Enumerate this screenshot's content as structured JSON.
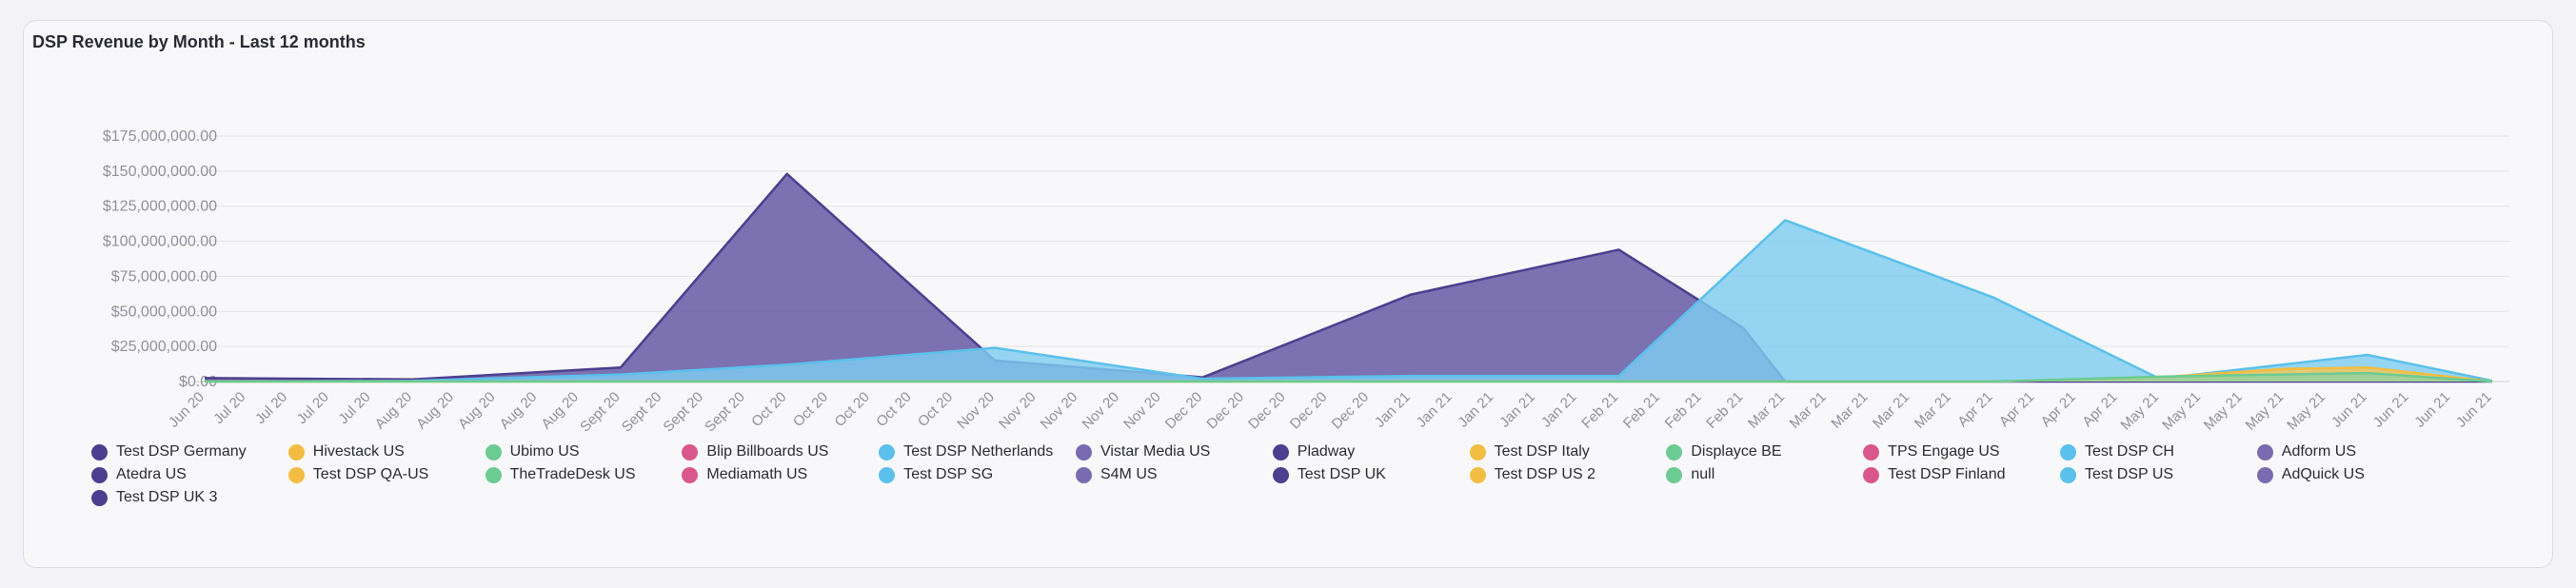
{
  "chart_data": {
    "type": "area",
    "title": "DSP Revenue by Month - Last 12 months",
    "xlabel": "",
    "ylabel": "",
    "ylim": [
      0,
      175000000
    ],
    "yticks": [
      0,
      25000000,
      50000000,
      75000000,
      100000000,
      125000000,
      150000000,
      175000000
    ],
    "ytick_labels": [
      "$0.00",
      "$25,000,000.00",
      "$50,000,000.00",
      "$75,000,000.00",
      "$100,000,000.00",
      "$125,000,000.00",
      "$150,000,000.00",
      "$175,000,000.00"
    ],
    "grid": true,
    "legend_placement": "bottom",
    "categories": [
      "Jun 20",
      "Jul 20",
      "Jul 20",
      "Jul 20",
      "Jul 20",
      "Aug 20",
      "Aug 20",
      "Aug 20",
      "Aug 20",
      "Aug 20",
      "Sept 20",
      "Sept 20",
      "Sept 20",
      "Sept 20",
      "Oct 20",
      "Oct 20",
      "Oct 20",
      "Oct 20",
      "Oct 20",
      "Nov 20",
      "Nov 20",
      "Nov 20",
      "Nov 20",
      "Nov 20",
      "Dec 20",
      "Dec 20",
      "Dec 20",
      "Dec 20",
      "Dec 20",
      "Jan 21",
      "Jan 21",
      "Jan 21",
      "Jan 21",
      "Jan 21",
      "Feb 21",
      "Feb 21",
      "Feb 21",
      "Feb 21",
      "Mar 21",
      "Mar 21",
      "Mar 21",
      "Mar 21",
      "Mar 21",
      "Apr 21",
      "Apr 21",
      "Apr 21",
      "Apr 21",
      "May 21",
      "May 21",
      "May 21",
      "May 21",
      "May 21",
      "Jun 21",
      "Jun 21",
      "Jun 21",
      "Jun 21"
    ],
    "series": [
      {
        "name": "Pladway",
        "color": "#4b3f8f",
        "fill": "#6a5ea6",
        "opacity": 0.88,
        "x": [
          0,
          5,
          10,
          14,
          19,
          24,
          29,
          34,
          37,
          38,
          55
        ],
        "values": [
          2500000,
          1500000,
          10000000,
          148000000,
          15000000,
          3000000,
          62000000,
          94000000,
          38000000,
          0,
          0
        ]
      },
      {
        "name": "Test DSP US",
        "color": "#5bc0eb",
        "fill": "#7fcdf0",
        "opacity": 0.82,
        "x": [
          0,
          5,
          10,
          14,
          19,
          24,
          29,
          34,
          38,
          43,
          47,
          52,
          55
        ],
        "values": [
          0,
          500000,
          5000000,
          12000000,
          24000000,
          2000000,
          4000000,
          4000000,
          115000000,
          60000000,
          2000000,
          19000000,
          500000
        ]
      },
      {
        "name": "Test DSP Italy",
        "color": "#f2bd42",
        "fill": "#f2c75c",
        "opacity": 0.85,
        "x": [
          0,
          43,
          47,
          50,
          52,
          55
        ],
        "values": [
          0,
          0,
          3000000,
          9000000,
          10000000,
          0
        ]
      },
      {
        "name": "TheTradeDesk US",
        "color": "#6ccb92",
        "fill": "#86d6a6",
        "opacity": 0.7,
        "x": [
          0,
          43,
          47,
          52,
          55
        ],
        "values": [
          0,
          0,
          3500000,
          6000000,
          0
        ]
      }
    ]
  },
  "legend": [
    {
      "label": "Test DSP Germany",
      "color": "#4b3f8f"
    },
    {
      "label": "Hivestack US",
      "color": "#f2bd42"
    },
    {
      "label": "Ubimo US",
      "color": "#6ccb92"
    },
    {
      "label": "Blip Billboards US",
      "color": "#d9578a"
    },
    {
      "label": "Test DSP Netherlands",
      "color": "#5bc0eb"
    },
    {
      "label": "Vistar Media US",
      "color": "#7a6bb0"
    },
    {
      "label": "Pladway",
      "color": "#4b3f8f"
    },
    {
      "label": "Test DSP Italy",
      "color": "#f2bd42"
    },
    {
      "label": "Displayce BE",
      "color": "#6ccb92"
    },
    {
      "label": "TPS Engage US",
      "color": "#d9578a"
    },
    {
      "label": "Test DSP CH",
      "color": "#5bc0eb"
    },
    {
      "label": "Adform US",
      "color": "#7a6bb0"
    },
    {
      "label": "Atedra US",
      "color": "#4b3f8f"
    },
    {
      "label": "Test DSP QA-US",
      "color": "#f2bd42"
    },
    {
      "label": "TheTradeDesk US",
      "color": "#6ccb92"
    },
    {
      "label": "Mediamath US",
      "color": "#d9578a"
    },
    {
      "label": "Test DSP SG",
      "color": "#5bc0eb"
    },
    {
      "label": "S4M US",
      "color": "#7a6bb0"
    },
    {
      "label": "Test DSP UK",
      "color": "#4b3f8f"
    },
    {
      "label": "Test DSP US 2",
      "color": "#f2bd42"
    },
    {
      "label": "null",
      "color": "#6ccb92"
    },
    {
      "label": "Test DSP Finland",
      "color": "#d9578a"
    },
    {
      "label": "Test DSP US",
      "color": "#5bc0eb"
    },
    {
      "label": "AdQuick US",
      "color": "#7a6bb0"
    },
    {
      "label": "Test DSP UK 3",
      "color": "#4b3f8f"
    }
  ]
}
